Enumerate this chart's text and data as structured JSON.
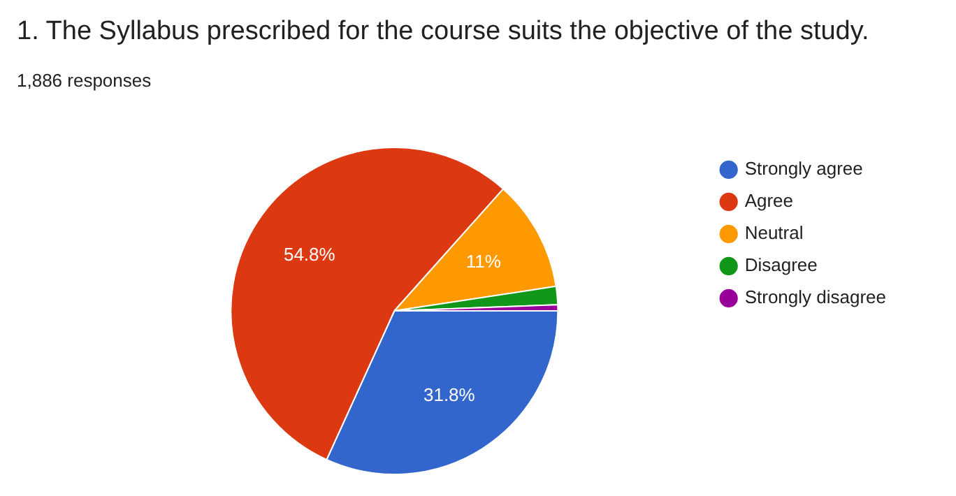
{
  "chart_data": {
    "type": "pie",
    "title": "1. The Syllabus prescribed for the course suits the objective of the study.",
    "subtitle": "1,886 responses",
    "categories": [
      "Strongly agree",
      "Agree",
      "Neutral",
      "Disagree",
      "Strongly disagree"
    ],
    "values": [
      31.8,
      54.8,
      11,
      1.8,
      0.6
    ],
    "colors": [
      "#3366cc",
      "#dc3912",
      "#ff9900",
      "#109618",
      "#990099"
    ],
    "value_labels": [
      "31.8%",
      "54.8%",
      "11%",
      null,
      null
    ],
    "legend": "right"
  }
}
